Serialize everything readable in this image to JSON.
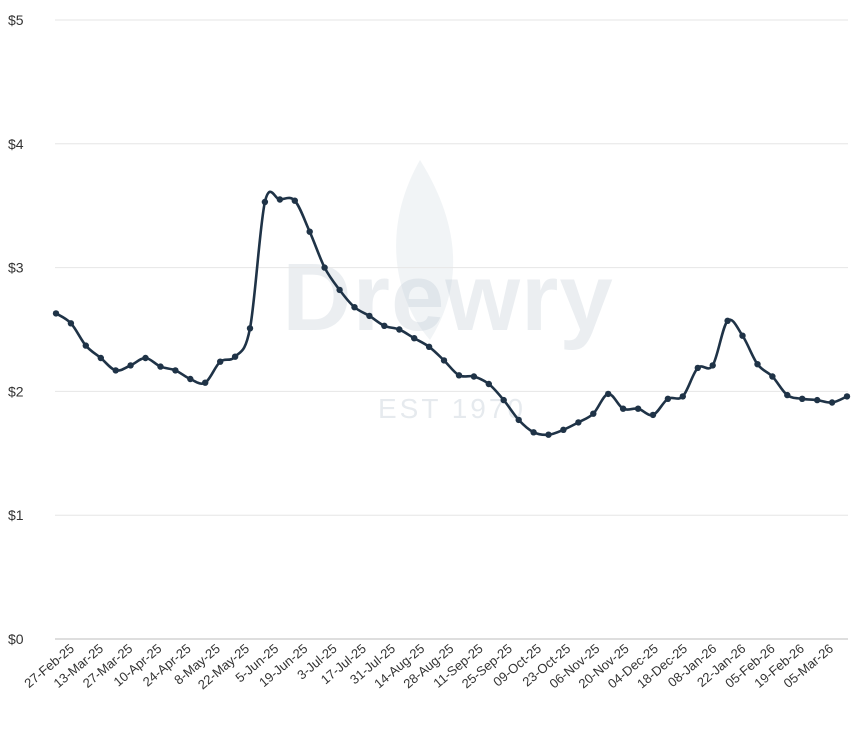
{
  "watermark": {
    "brand": "Drewry",
    "est": "EST 1970"
  },
  "colors": {
    "line": "#1f3347",
    "grid": "#e6e6e6",
    "axis": "#bdbdbd"
  },
  "chart_data": {
    "type": "line",
    "title": "",
    "xlabel": "",
    "ylabel": "",
    "ylim": [
      0,
      5
    ],
    "y_ticks": [
      {
        "value": 0,
        "label": "$0"
      },
      {
        "value": 1,
        "label": "$1"
      },
      {
        "value": 2,
        "label": "$2"
      },
      {
        "value": 3,
        "label": "$3"
      },
      {
        "value": 4,
        "label": "$4"
      },
      {
        "value": 5,
        "label": "$5"
      }
    ],
    "x_tick_labels": [
      "27-Feb-25",
      "13-Mar-25",
      "27-Mar-25",
      "10-Apr-25",
      "24-Apr-25",
      "8-May-25",
      "22-May-25",
      "5-Jun-25",
      "19-Jun-25",
      "3-Jul-25",
      "17-Jul-25",
      "31-Jul-25",
      "14-Aug-25",
      "28-Aug-25",
      "11-Sep-25",
      "25-Sep-25",
      "09-Oct-25",
      "23-Oct-25",
      "06-Nov-25",
      "20-Nov-25",
      "04-Dec-25",
      "18-Dec-25",
      "08-Jan-26",
      "22-Jan-26",
      "05-Feb-26",
      "19-Feb-26",
      "05-Mar-26"
    ],
    "grid": true,
    "series": [
      {
        "values": [
          2.63,
          2.55,
          2.37,
          2.27,
          2.17,
          2.21,
          2.27,
          2.2,
          2.17,
          2.1,
          2.07,
          2.24,
          2.28,
          2.51,
          3.53,
          3.55,
          3.54,
          3.29,
          3.0,
          2.82,
          2.68,
          2.61,
          2.53,
          2.5,
          2.43,
          2.36,
          2.25,
          2.13,
          2.12,
          2.06,
          1.93,
          1.77,
          1.67,
          1.65,
          1.69,
          1.75,
          1.82,
          1.98,
          1.86,
          1.86,
          1.81,
          1.94,
          1.96,
          2.19,
          2.21,
          2.57,
          2.45,
          2.22,
          2.12,
          1.97,
          1.94,
          1.93,
          1.91,
          1.96
        ]
      }
    ]
  }
}
